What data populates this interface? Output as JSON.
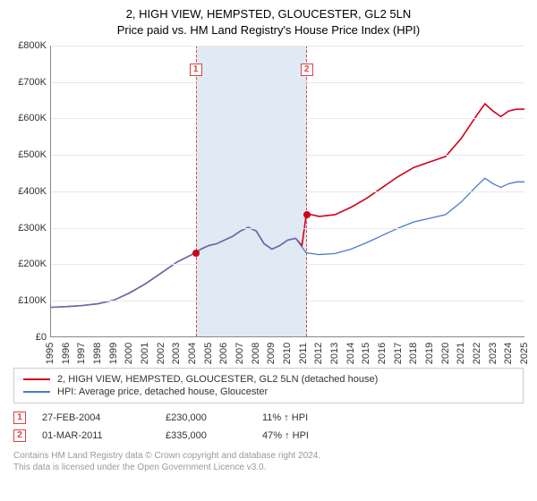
{
  "title": "2, HIGH VIEW, HEMPSTED, GLOUCESTER, GL2 5LN",
  "subtitle": "Price paid vs. HM Land Registry's House Price Index (HPI)",
  "chart": {
    "type": "line",
    "ylim": [
      0,
      800
    ],
    "ytick_step": 100,
    "ylabel_prefix": "£",
    "ylabel_suffix": "K",
    "xrange": [
      1995,
      2025
    ],
    "xticks": [
      1995,
      1996,
      1997,
      1998,
      1999,
      2000,
      2001,
      2002,
      2003,
      2004,
      2005,
      2006,
      2007,
      2008,
      2009,
      2010,
      2011,
      2012,
      2013,
      2014,
      2015,
      2016,
      2017,
      2018,
      2019,
      2020,
      2021,
      2022,
      2023,
      2024,
      2025
    ],
    "background_color": "#ffffff",
    "grid_color": "#e8e8e8",
    "band": {
      "start": 2004.15,
      "end": 2011.17,
      "fill": "#e0eaf4",
      "dash_color": "#e04040"
    },
    "series": [
      {
        "name": "property",
        "label": "2, HIGH VIEW, HEMPSTED, GLOUCESTER, GL2 5LN (detached house)",
        "color": "#d0021b",
        "width": 1.6,
        "points": [
          [
            1995,
            80
          ],
          [
            1996,
            82
          ],
          [
            1997,
            85
          ],
          [
            1998,
            90
          ],
          [
            1999,
            100
          ],
          [
            2000,
            120
          ],
          [
            2001,
            145
          ],
          [
            2002,
            175
          ],
          [
            2003,
            205
          ],
          [
            2004.15,
            230
          ],
          [
            2004.5,
            240
          ],
          [
            2005,
            250
          ],
          [
            2005.5,
            255
          ],
          [
            2006,
            265
          ],
          [
            2006.5,
            275
          ],
          [
            2007,
            290
          ],
          [
            2007.5,
            300
          ],
          [
            2008,
            290
          ],
          [
            2008.5,
            255
          ],
          [
            2009,
            240
          ],
          [
            2009.5,
            250
          ],
          [
            2010,
            265
          ],
          [
            2010.5,
            270
          ],
          [
            2010.9,
            250
          ],
          [
            2011.17,
            335
          ],
          [
            2011.5,
            335
          ],
          [
            2012,
            330
          ],
          [
            2013,
            335
          ],
          [
            2014,
            355
          ],
          [
            2015,
            380
          ],
          [
            2016,
            410
          ],
          [
            2017,
            440
          ],
          [
            2018,
            465
          ],
          [
            2019,
            480
          ],
          [
            2020,
            495
          ],
          [
            2021,
            545
          ],
          [
            2022,
            610
          ],
          [
            2022.5,
            640
          ],
          [
            2023,
            620
          ],
          [
            2023.5,
            605
          ],
          [
            2024,
            620
          ],
          [
            2024.5,
            625
          ],
          [
            2025,
            625
          ]
        ]
      },
      {
        "name": "hpi",
        "label": "HPI: Average price, detached house, Gloucester",
        "color": "#4a7bc8",
        "width": 1.3,
        "points": [
          [
            1995,
            80
          ],
          [
            1996,
            82
          ],
          [
            1997,
            85
          ],
          [
            1998,
            90
          ],
          [
            1999,
            100
          ],
          [
            2000,
            120
          ],
          [
            2001,
            145
          ],
          [
            2002,
            175
          ],
          [
            2003,
            205
          ],
          [
            2004.15,
            230
          ],
          [
            2004.5,
            240
          ],
          [
            2005,
            250
          ],
          [
            2005.5,
            255
          ],
          [
            2006,
            265
          ],
          [
            2006.5,
            275
          ],
          [
            2007,
            290
          ],
          [
            2007.5,
            300
          ],
          [
            2008,
            290
          ],
          [
            2008.5,
            255
          ],
          [
            2009,
            240
          ],
          [
            2009.5,
            250
          ],
          [
            2010,
            265
          ],
          [
            2010.5,
            270
          ],
          [
            2011.17,
            230
          ],
          [
            2011.5,
            228
          ],
          [
            2012,
            225
          ],
          [
            2013,
            228
          ],
          [
            2014,
            240
          ],
          [
            2015,
            258
          ],
          [
            2016,
            278
          ],
          [
            2017,
            298
          ],
          [
            2018,
            315
          ],
          [
            2019,
            325
          ],
          [
            2020,
            335
          ],
          [
            2021,
            370
          ],
          [
            2022,
            415
          ],
          [
            2022.5,
            435
          ],
          [
            2023,
            420
          ],
          [
            2023.5,
            410
          ],
          [
            2024,
            420
          ],
          [
            2024.5,
            425
          ],
          [
            2025,
            425
          ]
        ]
      }
    ],
    "markers": [
      {
        "id": "1",
        "x": 2004.15,
        "y": 230,
        "label_y_top": 20,
        "color": "#d0021b"
      },
      {
        "id": "2",
        "x": 2011.17,
        "y": 335,
        "label_y_top": 20,
        "color": "#d0021b"
      }
    ]
  },
  "legend": {
    "border_color": "#cccccc",
    "items": [
      {
        "color": "#d0021b",
        "label": "2, HIGH VIEW, HEMPSTED, GLOUCESTER, GL2 5LN (detached house)"
      },
      {
        "color": "#4a7bc8",
        "label": "HPI: Average price, detached house, Gloucester"
      }
    ]
  },
  "sales": [
    {
      "marker": "1",
      "date": "27-FEB-2004",
      "price": "£230,000",
      "hpi": "11% ↑ HPI"
    },
    {
      "marker": "2",
      "date": "01-MAR-2011",
      "price": "£335,000",
      "hpi": "47% ↑ HPI"
    }
  ],
  "footer": {
    "line1": "Contains HM Land Registry data © Crown copyright and database right 2024.",
    "line2": "This data is licensed under the Open Government Licence v3.0."
  }
}
